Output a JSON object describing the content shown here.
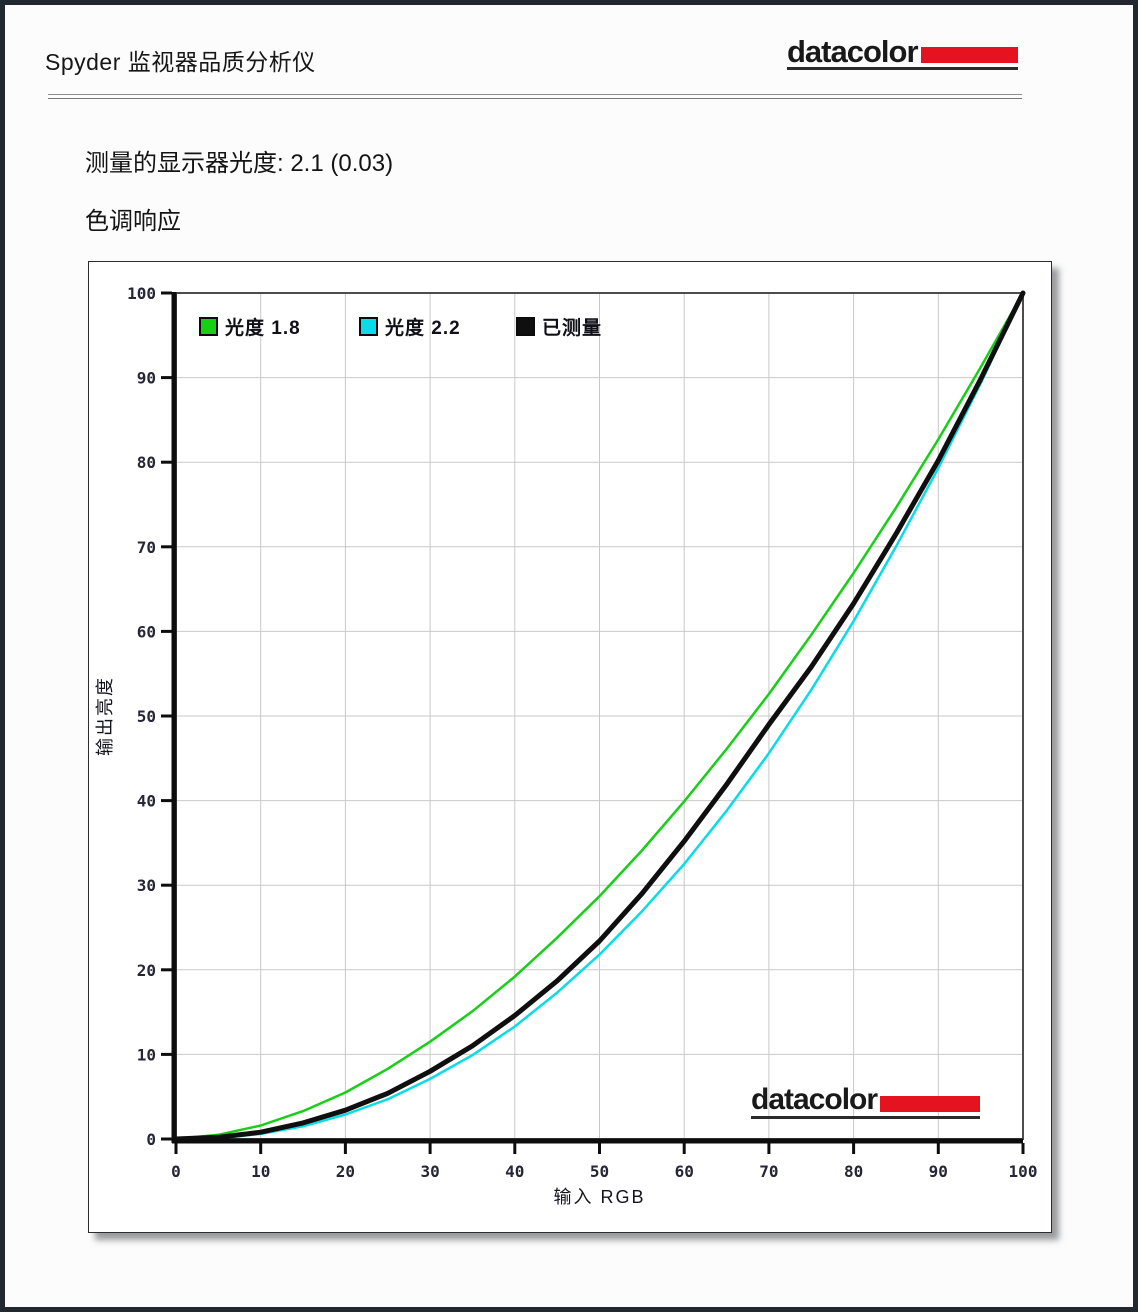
{
  "header": {
    "title": "Spyder 监视器品质分析仪"
  },
  "logo": {
    "text": "datacolor",
    "accent_color": "#e5131f"
  },
  "measurement": {
    "full_text": "测量的显示器光度:  2.1 (0.03)",
    "label": "测量的显示器光度:",
    "value": "2.1",
    "deviation": "(0.03)"
  },
  "section_title": "色调响应",
  "chart_data": {
    "type": "line",
    "title": "",
    "xlabel": "输入 RGB",
    "ylabel": "输出亮度",
    "xlim": [
      0,
      100
    ],
    "ylim": [
      0,
      100
    ],
    "x_ticks": [
      0,
      10,
      20,
      30,
      40,
      50,
      60,
      70,
      80,
      90,
      100
    ],
    "y_ticks": [
      0,
      10,
      20,
      30,
      40,
      50,
      60,
      70,
      80,
      90,
      100
    ],
    "grid": true,
    "legend_position": "top-left-inside",
    "watermark": "datacolor",
    "x": [
      0,
      5,
      10,
      15,
      20,
      25,
      30,
      35,
      40,
      45,
      50,
      55,
      60,
      65,
      70,
      75,
      80,
      85,
      90,
      95,
      100
    ],
    "series": [
      {
        "key": "gamma-1.8",
        "name": "光度 1.8",
        "color": "#16d016",
        "line_width": 2.5,
        "values": [
          0,
          0.5,
          1.6,
          3.3,
          5.5,
          8.3,
          11.5,
          15.1,
          19.2,
          23.8,
          28.7,
          34.1,
          39.9,
          46.1,
          52.6,
          59.6,
          66.9,
          74.6,
          82.7,
          91.2,
          100
        ]
      },
      {
        "key": "gamma-2.2",
        "name": "光度 2.2",
        "color": "#0adce6",
        "line_width": 2.5,
        "values": [
          0,
          0.1,
          0.6,
          1.5,
          2.9,
          4.7,
          7.1,
          9.9,
          13.3,
          17.3,
          21.8,
          26.9,
          32.5,
          38.8,
          45.6,
          53.1,
          61.2,
          70.0,
          79.3,
          89.3,
          100
        ]
      },
      {
        "key": "measured",
        "name": "已测量",
        "color": "#0f0f0f",
        "line_width": 5,
        "values": [
          0,
          0.2,
          0.8,
          1.9,
          3.4,
          5.4,
          8.0,
          11.0,
          14.6,
          18.7,
          23.4,
          29.0,
          35.2,
          41.9,
          49.0,
          55.8,
          63.3,
          71.5,
          80.2,
          89.8,
          100
        ]
      }
    ]
  }
}
